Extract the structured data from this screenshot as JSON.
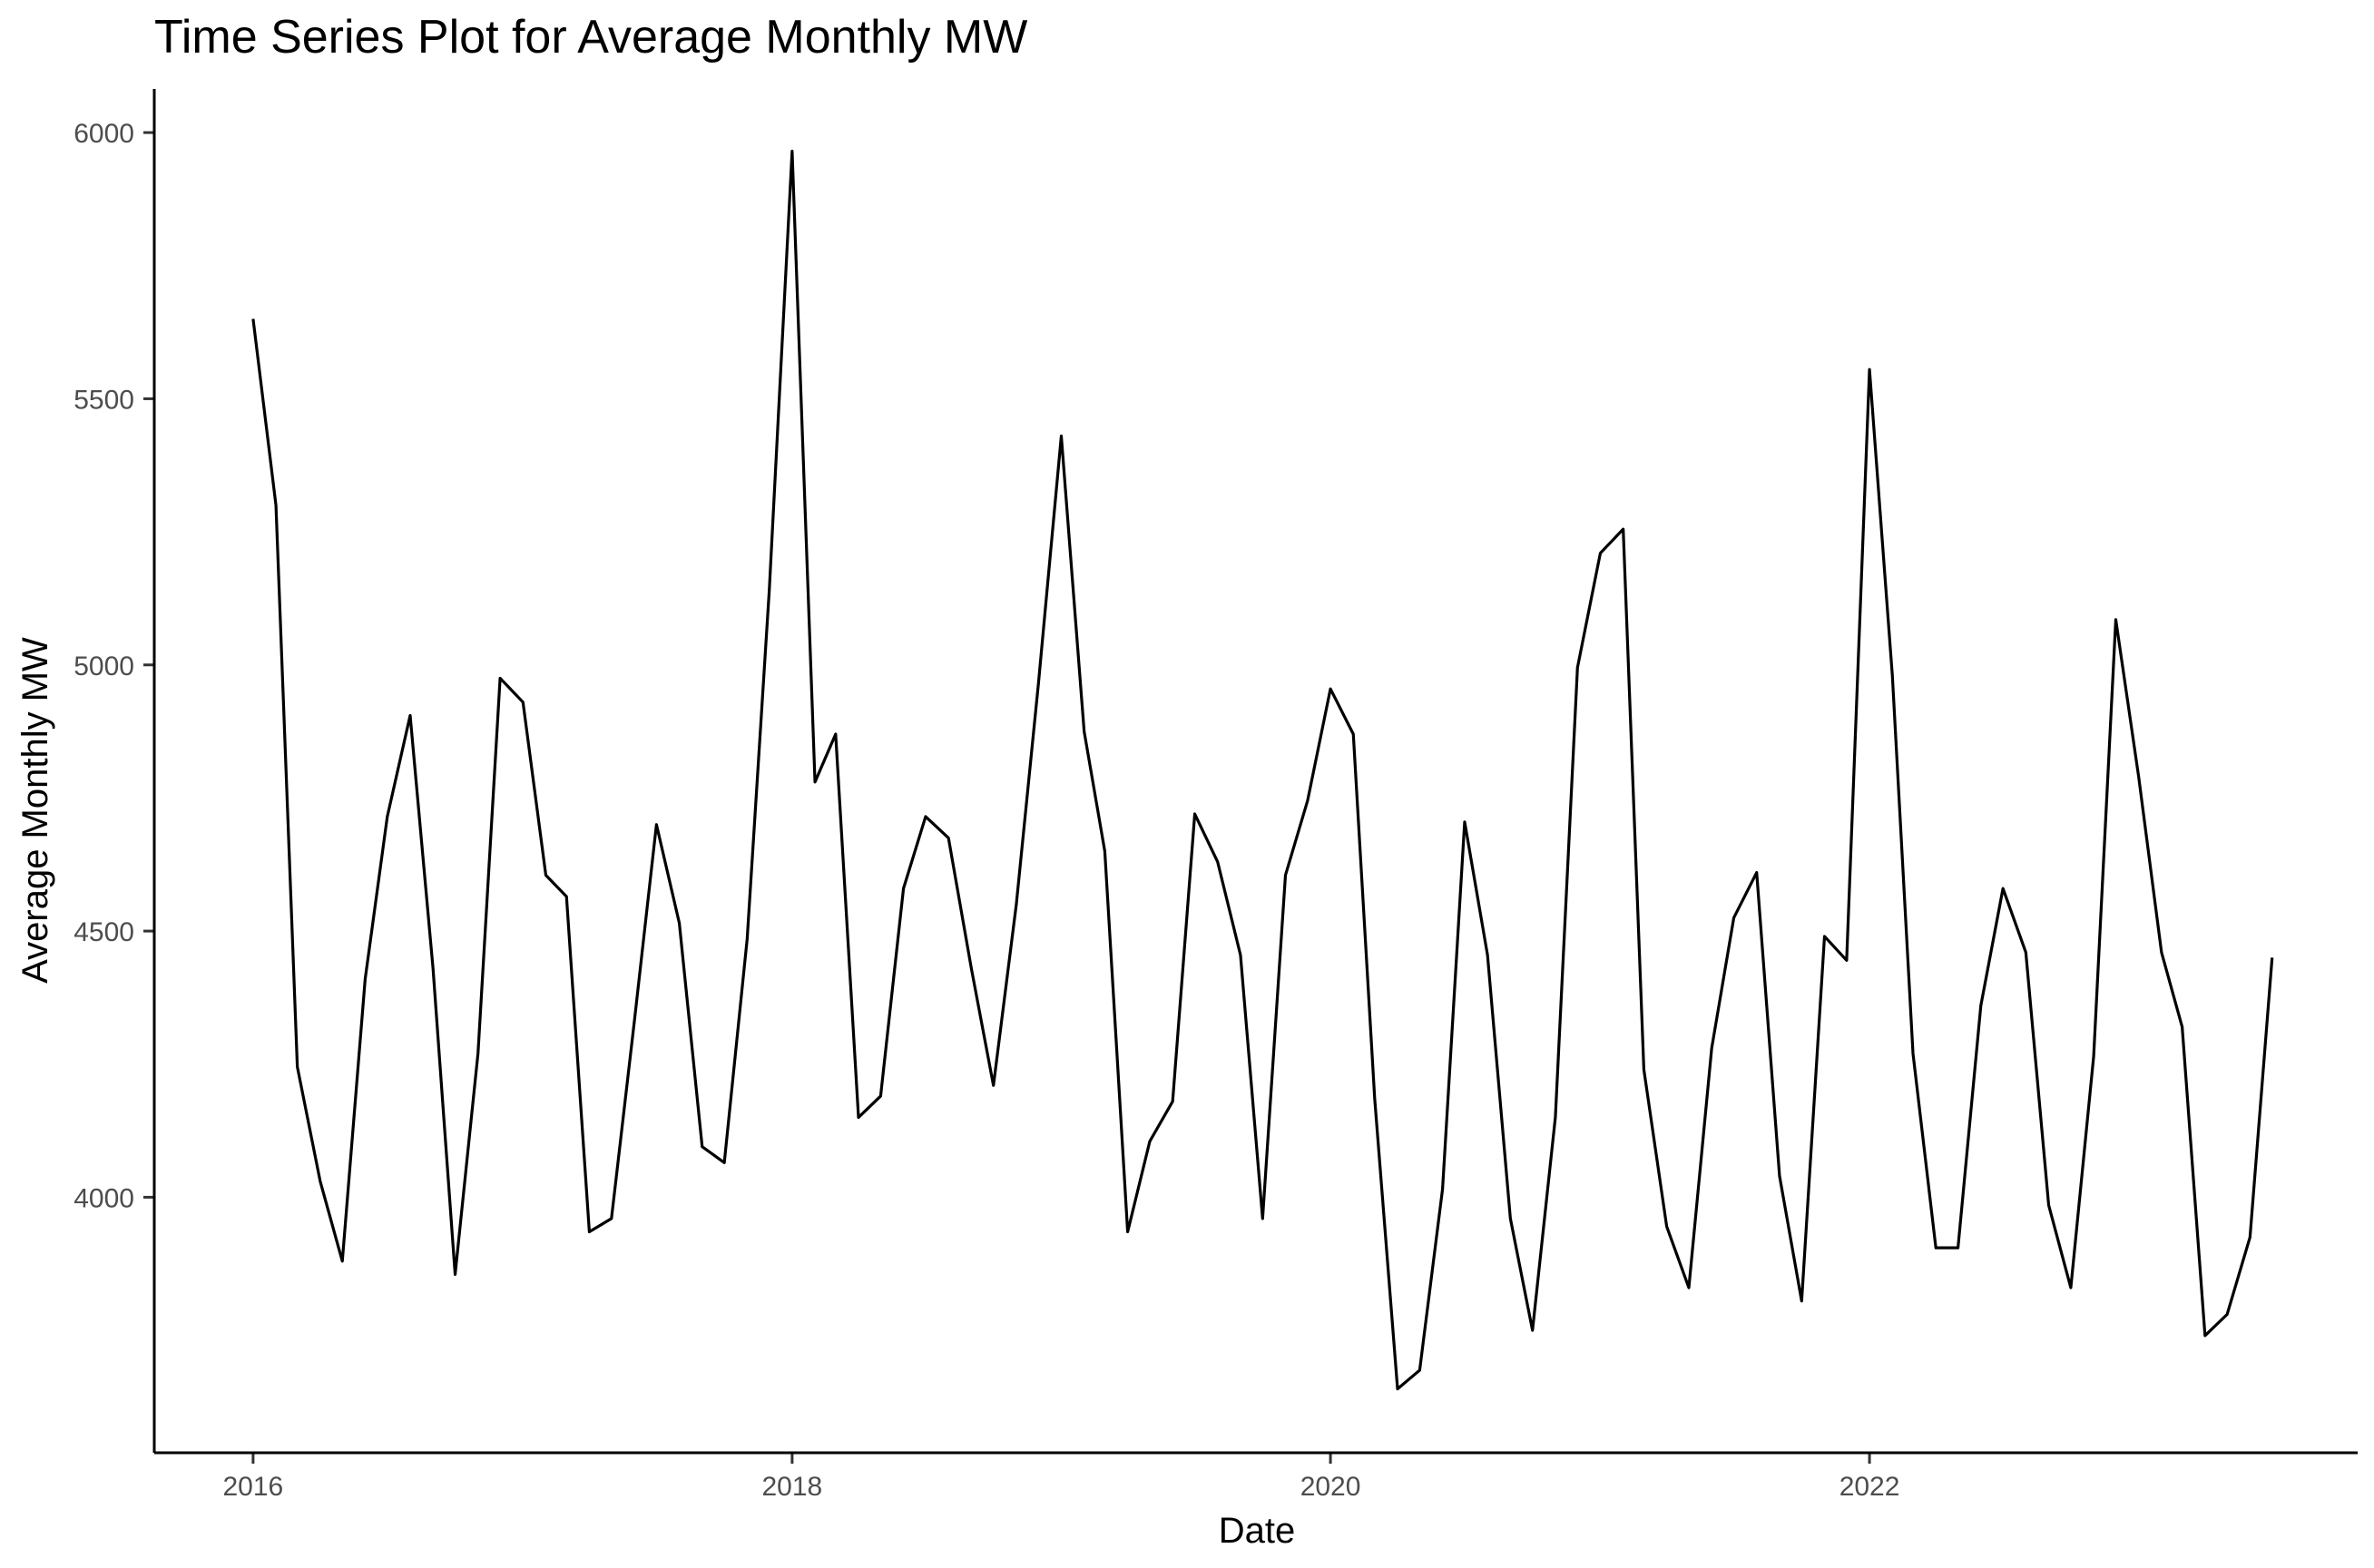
{
  "chart_data": {
    "type": "line",
    "title": "Time Series Plot for Average Monthly MW",
    "xlabel": "Date",
    "ylabel": "Average Monthly MW",
    "xlim": [
      "2015-08-20",
      "2023-10-25"
    ],
    "ylim": [
      3520,
      6082
    ],
    "x_ticks": [
      "2016",
      "2018",
      "2020",
      "2022"
    ],
    "y_ticks": [
      "4000",
      "4500",
      "5000",
      "5500",
      "6000"
    ],
    "grid": false,
    "legend": "none",
    "line_color": "#000000",
    "x": [
      "2016-01",
      "2016-02",
      "2016-03",
      "2016-04",
      "2016-05",
      "2016-06",
      "2016-07",
      "2016-08",
      "2016-09",
      "2016-10",
      "2016-11",
      "2016-12",
      "2017-01",
      "2017-02",
      "2017-03",
      "2017-04",
      "2017-05",
      "2017-06",
      "2017-07",
      "2017-08",
      "2017-09",
      "2017-10",
      "2017-11",
      "2017-12",
      "2018-01",
      "2018-02",
      "2018-03",
      "2018-04",
      "2018-05",
      "2018-06",
      "2018-07",
      "2018-08",
      "2018-09",
      "2018-10",
      "2018-11",
      "2018-12",
      "2019-01",
      "2019-02",
      "2019-03",
      "2019-04",
      "2019-05",
      "2019-06",
      "2019-07",
      "2019-08",
      "2019-09",
      "2019-10",
      "2019-11",
      "2019-12",
      "2020-01",
      "2020-02",
      "2020-03",
      "2020-04",
      "2020-05",
      "2020-06",
      "2020-07",
      "2020-08",
      "2020-09",
      "2020-10",
      "2020-11",
      "2020-12",
      "2021-01",
      "2021-02",
      "2021-03",
      "2021-04",
      "2021-05",
      "2021-06",
      "2021-07",
      "2021-08",
      "2021-09",
      "2021-10",
      "2021-11",
      "2021-12",
      "2022-01",
      "2022-02",
      "2022-03",
      "2022-04",
      "2022-05",
      "2022-06",
      "2022-07",
      "2022-08",
      "2022-09",
      "2022-10",
      "2022-11",
      "2022-12",
      "2023-01",
      "2023-02",
      "2023-03",
      "2023-04",
      "2023-05",
      "2023-06",
      "2023-07"
    ],
    "y": [
      5650,
      5300,
      4245,
      4030,
      3880,
      4410,
      4715,
      4905,
      4430,
      3855,
      4270,
      4975,
      4930,
      4605,
      4565,
      3935,
      3960,
      4330,
      4700,
      4515,
      4095,
      4065,
      4485,
      5140,
      5965,
      4780,
      4870,
      4150,
      4190,
      4580,
      4715,
      4675,
      4430,
      4210,
      4550,
      4965,
      5430,
      4875,
      4650,
      3935,
      4105,
      4180,
      4720,
      4630,
      4455,
      3960,
      4605,
      4745,
      4955,
      4870,
      4185,
      3640,
      3675,
      4015,
      4705,
      4455,
      3960,
      3750,
      4150,
      4995,
      5210,
      5255,
      4240,
      3945,
      3830,
      4280,
      4525,
      4610,
      4040,
      3805,
      4490,
      4445,
      5555,
      4980,
      4270,
      3905,
      3905,
      4360,
      4580,
      4460,
      3985,
      3830,
      4265,
      5085,
      4790,
      4460,
      4320,
      3740,
      3780,
      3925,
      4450
    ]
  }
}
